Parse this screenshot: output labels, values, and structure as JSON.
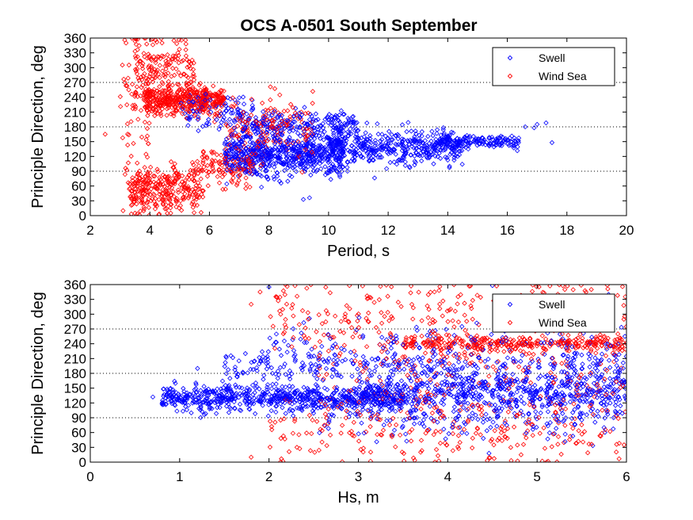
{
  "figure": {
    "title": "OCS A-0501 South September"
  },
  "chart_data": [
    {
      "type": "scatter",
      "title": "OCS A-0501 South September",
      "xlabel": "Period, s",
      "ylabel": "Principle Direction, deg",
      "xlim": [
        2,
        20
      ],
      "ylim": [
        0,
        360
      ],
      "xticks": [
        "2",
        "4",
        "6",
        "8",
        "10",
        "12",
        "14",
        "16",
        "18",
        "20"
      ],
      "yticks": [
        "0",
        "30",
        "60",
        "90",
        "120",
        "150",
        "180",
        "210",
        "240",
        "270",
        "300",
        "330",
        "360"
      ],
      "reference_lines_y": [
        90,
        180,
        270
      ],
      "grid": false,
      "legend": {
        "position": "top-right",
        "entries": [
          "Swell",
          "Wind Sea"
        ]
      },
      "series": [
        {
          "name": "Swell",
          "color": "#0000ff",
          "marker": "diamond-open",
          "clusters": [
            {
              "x_range": [
                6.5,
                10.5
              ],
              "y_center": 125,
              "y_spread": 22,
              "count": 650
            },
            {
              "x_range": [
                10,
                14.5
              ],
              "y_center": 138,
              "y_spread": 16,
              "count": 420
            },
            {
              "x_range": [
                13.5,
                16.5
              ],
              "y_center": 150,
              "y_spread": 7,
              "count": 160
            },
            {
              "x_range": [
                7,
                11
              ],
              "y_center": 185,
              "y_spread": 15,
              "count": 200
            },
            {
              "x_range": [
                5,
                7.5
              ],
              "y_center": 210,
              "y_spread": 18,
              "count": 100
            }
          ],
          "points": [
            [
              16.6,
              180
            ],
            [
              17.0,
              185
            ],
            [
              17.3,
              188
            ],
            [
              17.5,
              148
            ],
            [
              16.9,
              178
            ]
          ]
        },
        {
          "name": "Wind Sea",
          "color": "#ff0000",
          "marker": "diamond-open",
          "clusters": [
            {
              "x_range": [
                3.8,
                6.5
              ],
              "y_center": 235,
              "y_spread": 14,
              "count": 420
            },
            {
              "x_range": [
                3.5,
                5.5
              ],
              "y_center": 300,
              "y_spread": 35,
              "count": 170
            },
            {
              "x_range": [
                3.3,
                5.8
              ],
              "y_center": 50,
              "y_spread": 25,
              "count": 300
            },
            {
              "x_range": [
                5.5,
                7.5
              ],
              "y_center": 100,
              "y_spread": 22,
              "count": 120
            },
            {
              "x_range": [
                6.5,
                9.5
              ],
              "y_center": 175,
              "y_spread": 30,
              "count": 160
            },
            {
              "x_range": [
                3.0,
                4.0
              ],
              "y_center": 180,
              "y_spread": 80,
              "count": 60
            }
          ],
          "points": [
            [
              2.5,
              165
            ],
            [
              3.2,
              350
            ],
            [
              3.6,
              358
            ],
            [
              4.1,
              358
            ],
            [
              3.1,
              10
            ],
            [
              3.5,
              5
            ]
          ]
        }
      ]
    },
    {
      "type": "scatter",
      "title": "",
      "xlabel": "Hs, m",
      "ylabel": "Principle Direction, deg",
      "xlim": [
        0,
        6
      ],
      "ylim": [
        0,
        360
      ],
      "xticks": [
        "0",
        "1",
        "2",
        "3",
        "4",
        "5",
        "6"
      ],
      "yticks": [
        "0",
        "30",
        "60",
        "90",
        "120",
        "150",
        "180",
        "210",
        "240",
        "270",
        "300",
        "330",
        "360"
      ],
      "reference_lines_y": [
        90,
        180,
        270
      ],
      "grid": false,
      "legend": {
        "position": "top-right",
        "entries": [
          "Swell",
          "Wind Sea"
        ]
      },
      "series": [
        {
          "name": "Swell",
          "color": "#0000ff",
          "marker": "diamond-open",
          "clusters": [
            {
              "x_range": [
                0.8,
                3.5
              ],
              "y_center": 130,
              "y_spread": 12,
              "count": 700
            },
            {
              "x_range": [
                3.0,
                6.0
              ],
              "y_center": 140,
              "y_spread": 22,
              "count": 600
            },
            {
              "x_range": [
                1.5,
                6.0
              ],
              "y_center": 195,
              "y_spread": 18,
              "count": 320
            },
            {
              "x_range": [
                2.0,
                6.0
              ],
              "y_center": 240,
              "y_spread": 20,
              "count": 120
            },
            {
              "x_range": [
                2.5,
                6.0
              ],
              "y_center": 90,
              "y_spread": 25,
              "count": 150
            }
          ],
          "points": [
            [
              0.7,
              132
            ],
            [
              0.85,
              118
            ],
            [
              1.2,
              190
            ],
            [
              2.0,
              355
            ],
            [
              4.5,
              358
            ],
            [
              5.8,
              340
            ]
          ]
        },
        {
          "name": "Wind Sea",
          "color": "#ff0000",
          "marker": "diamond-open",
          "clusters": [
            {
              "x_range": [
                3.5,
                6.0
              ],
              "y_center": 240,
              "y_spread": 8,
              "count": 300
            },
            {
              "x_range": [
                2.0,
                6.0
              ],
              "y_center": 300,
              "y_spread": 45,
              "count": 250
            },
            {
              "x_range": [
                2.0,
                6.0
              ],
              "y_center": 60,
              "y_spread": 40,
              "count": 250
            },
            {
              "x_range": [
                2.5,
                6.0
              ],
              "y_center": 180,
              "y_spread": 50,
              "count": 200
            }
          ],
          "points": [
            [
              1.8,
              320
            ],
            [
              1.9,
              345
            ],
            [
              1.8,
              10
            ],
            [
              2.9,
              358
            ],
            [
              5.9,
              338
            ]
          ]
        }
      ]
    }
  ]
}
